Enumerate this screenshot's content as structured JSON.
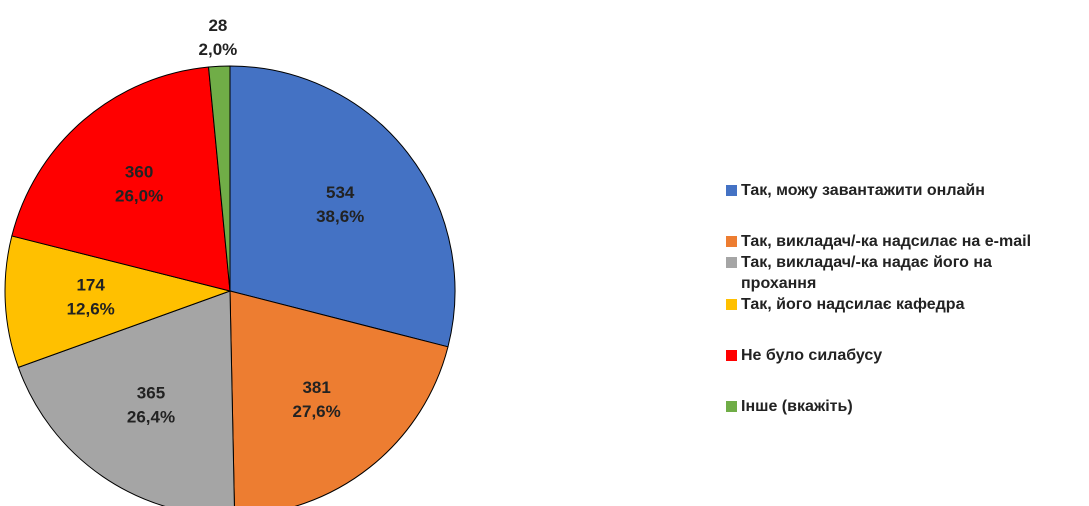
{
  "chart_data": {
    "type": "pie",
    "categories": [
      "Так, можу завантажити онлайн",
      "Так, викладач/-ка надсилає на e-mail",
      "Так, викладач/-ка надає його на прохання",
      "Так, його надсилає кафедра",
      "Не було силабусу",
      "Інше (вкажіть)"
    ],
    "values": [
      534,
      381,
      365,
      174,
      360,
      28
    ],
    "percentages": [
      38.6,
      27.6,
      26.4,
      12.6,
      26.0,
      2.0
    ],
    "percentage_labels": [
      "38,6%",
      "27,6%",
      "26,4%",
      "12,6%",
      "26,0%",
      "2,0%"
    ],
    "colors": [
      "#4472c4",
      "#ed7d31",
      "#a5a5a5",
      "#ffc000",
      "#ff0000",
      "#70ad47"
    ],
    "legend": "right"
  }
}
